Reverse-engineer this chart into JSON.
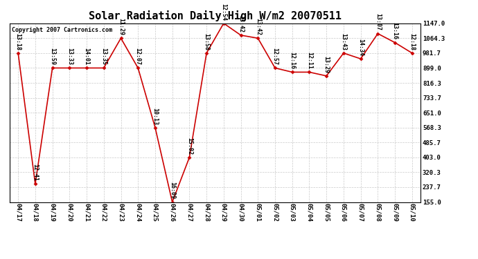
{
  "title": "Solar Radiation Daily High W/m2 20070511",
  "copyright": "Copyright 2007 Cartronics.com",
  "dates": [
    "04/17",
    "04/18",
    "04/19",
    "04/20",
    "04/21",
    "04/22",
    "04/23",
    "04/24",
    "04/25",
    "04/26",
    "04/27",
    "04/28",
    "04/29",
    "04/30",
    "05/01",
    "05/02",
    "05/03",
    "05/04",
    "05/05",
    "05/06",
    "05/07",
    "05/08",
    "05/09",
    "05/10"
  ],
  "values": [
    981.7,
    255.0,
    899.0,
    899.0,
    899.0,
    899.0,
    1064.3,
    899.0,
    568.3,
    155.0,
    403.0,
    981.7,
    1147.0,
    1081.0,
    1064.3,
    899.0,
    876.0,
    876.0,
    855.0,
    981.7,
    950.0,
    1090.0,
    1040.0,
    981.7
  ],
  "time_labels": [
    "13:18",
    "12:41",
    "13:59",
    "13:33",
    "14:01",
    "13:35",
    "11:29",
    "12:07",
    "10:13",
    "16:09",
    "15:02",
    "13:58",
    "12:54",
    "13:42",
    "13:42",
    "12:57",
    "12:16",
    "12:11",
    "13:29",
    "13:43",
    "14:34",
    "13:07",
    "13:16",
    "12:18"
  ],
  "ylim": [
    155.0,
    1147.0
  ],
  "yticks": [
    155.0,
    237.7,
    320.3,
    403.0,
    485.7,
    568.3,
    651.0,
    733.7,
    816.3,
    899.0,
    981.7,
    1064.3,
    1147.0
  ],
  "line_color": "#cc0000",
  "marker_color": "#cc0000",
  "background_color": "#ffffff",
  "grid_color": "#bbbbbb",
  "title_fontsize": 11,
  "label_fontsize": 6.0,
  "tick_fontsize": 6.5,
  "copyright_fontsize": 6.0
}
